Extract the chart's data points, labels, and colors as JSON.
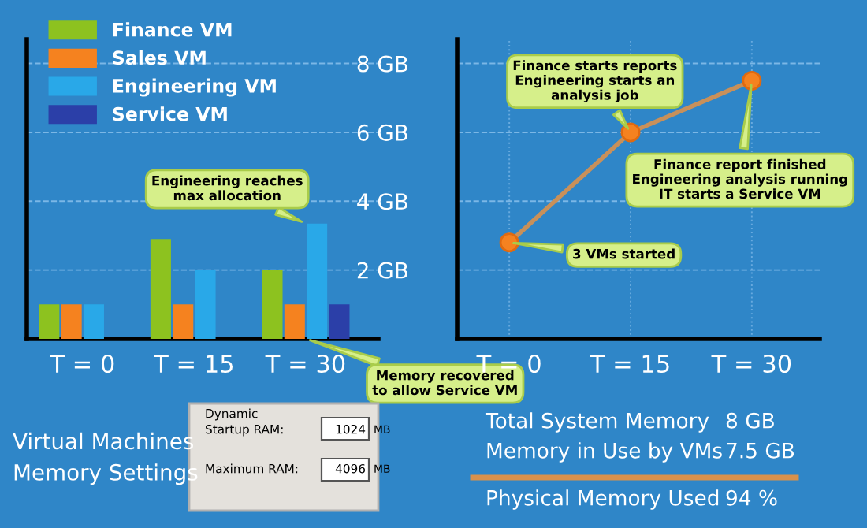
{
  "chart_data": [
    {
      "type": "bar",
      "categories": [
        "T = 0",
        "T = 15",
        "T = 30"
      ],
      "ylim": [
        0,
        8.7
      ],
      "yticks": [
        {
          "value": 2,
          "label": null
        },
        {
          "value": 4,
          "label": null
        },
        {
          "value": 6,
          "label": null
        },
        {
          "value": 8,
          "label": null
        }
      ],
      "tick_labels": "x",
      "grid": "y",
      "legend": "top left",
      "series": [
        {
          "name": "Finance VM",
          "color": "#8dc21f",
          "values": [
            1.0,
            2.9,
            2.0
          ]
        },
        {
          "name": "Sales VM",
          "color": "#f5821f",
          "values": [
            1.0,
            1.0,
            1.0
          ]
        },
        {
          "name": "Engineering VM",
          "color": "#29a8e8",
          "values": [
            1.0,
            2.0,
            3.35
          ]
        },
        {
          "name": "Service VM",
          "color": "#2b3fa8",
          "values": [
            null,
            null,
            1.0
          ]
        }
      ],
      "annotations": [
        {
          "text": "Engineering reaches\nmax allocation",
          "x": "T = 30",
          "y": 3.35
        },
        {
          "text": "Memory recovered\nto allow Service VM",
          "x": "T = 30",
          "y": 0
        }
      ]
    },
    {
      "type": "line",
      "categories": [
        "T = 0",
        "T = 15",
        "T = 30"
      ],
      "ylim": [
        0,
        8.7
      ],
      "yticks": [
        {
          "value": 2,
          "label": "2 GB"
        },
        {
          "value": 4,
          "label": "4 GB"
        },
        {
          "value": 6,
          "label": "6 GB"
        },
        {
          "value": 8,
          "label": "8 GB"
        }
      ],
      "grid": true,
      "marker": "circle",
      "line_style": "solid",
      "series": [
        {
          "color": "#c8905a",
          "values": [
            2.8,
            6.0,
            7.5
          ]
        }
      ],
      "annotations": [
        {
          "text": "Finance starts reports\nEngineering starts an\nanalysis job",
          "x": "T = 15",
          "y": 6.0
        },
        {
          "text": "Finance report finished\nEngineering analysis running\nIT starts a Service VM",
          "x": "T = 30",
          "y": 7.5
        },
        {
          "text": "3 VMs started",
          "x": "T = 0",
          "y": 2.8
        }
      ]
    },
    {
      "type": "other",
      "annotations": [
        "Virtual Machines\nMemory Settings",
        "Dynamic",
        "Startup RAM:",
        "1024",
        "MB",
        "Maximum RAM:",
        "4096",
        "MB",
        "Total System Memory",
        "8 GB",
        "Memory in Use by VMs",
        "7.5 GB",
        "Physical Memory Used",
        "94 %"
      ]
    }
  ]
}
